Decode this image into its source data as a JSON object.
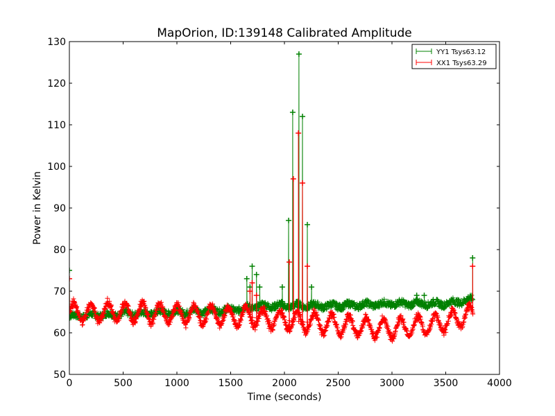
{
  "chart_data": {
    "type": "line",
    "title": "MapOrion, ID:139148 Calibrated Amplitude",
    "xlabel": "Time (seconds)",
    "ylabel": "Power in Kelvin",
    "xlim": [
      0,
      4000
    ],
    "ylim": [
      50,
      130
    ],
    "xticks": [
      "0",
      "500",
      "1000",
      "1500",
      "2000",
      "2500",
      "3000",
      "3500",
      "4000"
    ],
    "yticks": [
      "50",
      "60",
      "70",
      "80",
      "90",
      "100",
      "110",
      "120",
      "130"
    ],
    "grid": false,
    "legend_position": "top-right",
    "marker": "+",
    "series": [
      {
        "name": "YY1 Tsys63.12",
        "color": "#008000",
        "baseline": {
          "x": [
            0,
            500,
            1000,
            1500,
            1800,
            2000,
            2500,
            3000,
            3500,
            3750
          ],
          "y": [
            64.0,
            64.5,
            65.0,
            65.5,
            66.5,
            66.5,
            66.5,
            67.0,
            67.0,
            68.0
          ]
        },
        "ripple_amplitude": 1.0,
        "spikes": {
          "x": [
            0,
            1650,
            1680,
            1700,
            1740,
            1770,
            1980,
            2039,
            2077,
            2135,
            2168,
            2213,
            2252,
            3230,
            3300,
            3750
          ],
          "y": [
            75,
            73,
            71,
            76,
            74,
            71,
            71,
            87,
            113,
            127,
            112,
            86,
            71,
            69,
            69,
            78
          ]
        }
      },
      {
        "name": "XX1 Tsys63.29",
        "color": "#ff0000",
        "baseline": {
          "x": [
            0,
            500,
            1000,
            1500,
            1800,
            2000,
            2500,
            2900,
            3200,
            3500,
            3750
          ],
          "y": [
            65.0,
            65.0,
            64.5,
            64.0,
            63.5,
            63.0,
            62.0,
            61.0,
            61.5,
            62.5,
            64.5
          ]
        },
        "ripple_amplitude": 2.8,
        "spikes": {
          "x": [
            0,
            1680,
            1700,
            1740,
            2045,
            2083,
            2130,
            2168,
            2213,
            3750
          ],
          "y": [
            73,
            70,
            72,
            69,
            77,
            97,
            108,
            96,
            76,
            76
          ]
        }
      }
    ]
  }
}
